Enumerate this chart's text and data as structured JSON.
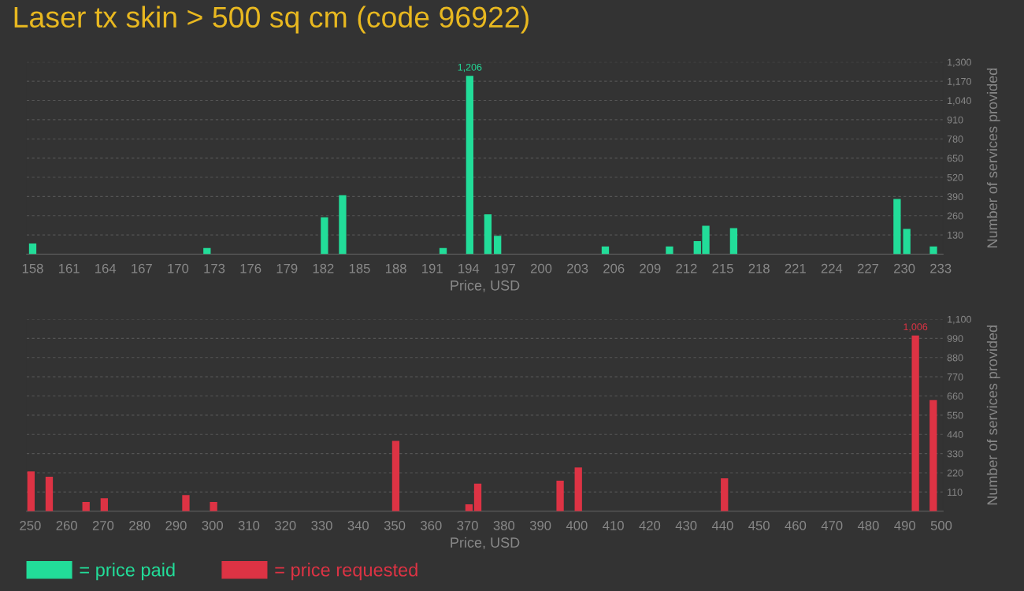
{
  "chart_data": [
    {
      "type": "bar",
      "title": "Laser tx skin > 500 sq cm (code 96922)",
      "xlabel": "Price, USD",
      "ylabel": "Number of services provided",
      "series": [
        {
          "name": "= price paid",
          "color": "#22dd99",
          "x": [
            158,
            172.4,
            182.1,
            183.6,
            191.9,
            194.1,
            195.6,
            196.4,
            205.3,
            210.6,
            212.9,
            213.6,
            215.9,
            229.4,
            230.2,
            232.4
          ],
          "values": [
            72,
            41,
            249,
            399,
            41,
            1206,
            269,
            124,
            52,
            52,
            88,
            192,
            176,
            373,
            171,
            52
          ],
          "value_labels": [
            null,
            null,
            null,
            null,
            null,
            "1,206",
            null,
            null,
            null,
            null,
            null,
            null,
            null,
            null,
            null,
            null
          ]
        }
      ],
      "xlim": [
        157.5,
        233.2
      ],
      "xticks": [
        158,
        161,
        164,
        167,
        170,
        173,
        176,
        179,
        182,
        185,
        188,
        191,
        194,
        197,
        200,
        203,
        206,
        209,
        212,
        215,
        218,
        221,
        224,
        227,
        230,
        233
      ],
      "ylim": [
        0,
        1300
      ],
      "yticks": [
        130,
        260,
        390,
        520,
        650,
        780,
        910,
        {
          "value": 1040,
          "label": "1,040"
        },
        {
          "value": 1170,
          "label": "1,170"
        },
        {
          "value": 1300,
          "label": "1,300"
        }
      ],
      "grid": "y",
      "legend": "bottom"
    },
    {
      "type": "bar",
      "xlabel": "Price, USD",
      "ylabel": "Number of services provided",
      "series": [
        {
          "name": "= price requested",
          "color": "#dd3344",
          "x": [
            250.2,
            255.2,
            265.3,
            270.3,
            292.7,
            300.3,
            350.3,
            370.4,
            372.8,
            395.4,
            400.4,
            440.5,
            492.9,
            497.8
          ],
          "values": [
            228,
            197,
            53,
            75,
            92,
            53,
            403,
            39,
            158,
            175,
            250,
            188,
            1006,
            636
          ],
          "value_labels": [
            null,
            null,
            null,
            null,
            null,
            null,
            null,
            null,
            null,
            null,
            null,
            null,
            "1,006",
            null
          ]
        }
      ],
      "xlim": [
        249,
        500.5
      ],
      "xticks": [
        250,
        260,
        270,
        280,
        290,
        300,
        310,
        320,
        330,
        340,
        350,
        360,
        370,
        380,
        390,
        400,
        410,
        420,
        430,
        440,
        450,
        460,
        470,
        480,
        490,
        500
      ],
      "ylim": [
        0,
        1100
      ],
      "yticks": [
        110,
        220,
        330,
        440,
        550,
        660,
        770,
        880,
        990,
        {
          "value": 1100,
          "label": "1,100"
        }
      ],
      "grid": "y",
      "legend": "bottom"
    }
  ]
}
